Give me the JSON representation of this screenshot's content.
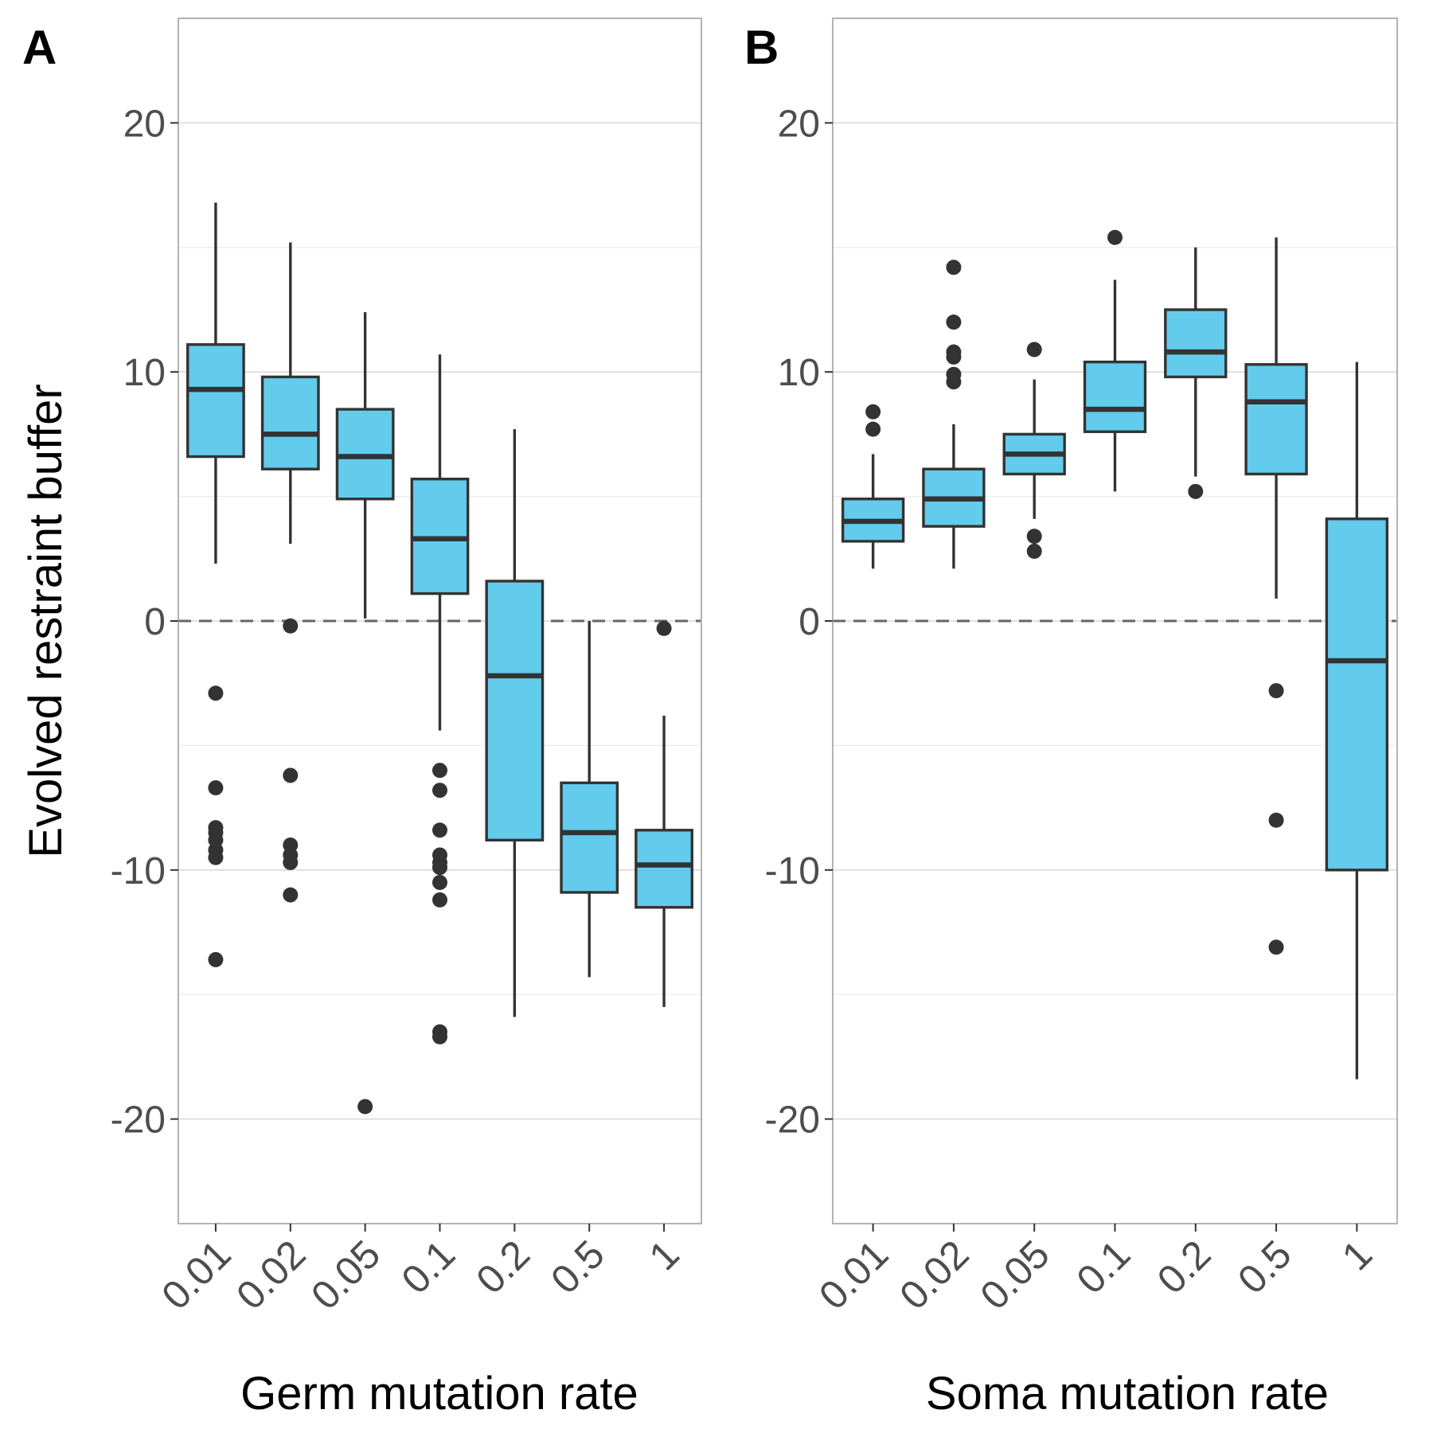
{
  "colors": {
    "box_fill": "#63CBEC",
    "box_stroke": "#333333",
    "grid": "#dedede",
    "panel_border": "#b3b3b3",
    "zero_line": "#666666",
    "tick_text": "#4d4d4d"
  },
  "ylabel": "Evolved restraint buffer",
  "chart_data": [
    {
      "type": "box",
      "panel_label": "A",
      "xlabel": "Germ mutation rate",
      "ylabel": "Evolved restraint buffer",
      "ylim": [
        -24.2,
        24.2
      ],
      "yticks": [
        -20,
        -10,
        0,
        10,
        20
      ],
      "yticks_labels": [
        "-20",
        "-10",
        "0",
        "10",
        "20"
      ],
      "reference_line": {
        "y": 0,
        "style": "dashed"
      },
      "categories": [
        "0.01",
        "0.02",
        "0.05",
        "0.1",
        "0.2",
        "0.5",
        "1"
      ],
      "boxes": [
        {
          "q1": 6.6,
          "median": 9.3,
          "q3": 11.1,
          "whisker_low": 2.3,
          "whisker_high": 16.8,
          "outliers": [
            -2.9,
            -6.7,
            -8.3,
            -8.5,
            -8.8,
            -9.2,
            -9.5,
            -13.6
          ]
        },
        {
          "q1": 6.1,
          "median": 7.5,
          "q3": 9.8,
          "whisker_low": 3.1,
          "whisker_high": 15.2,
          "outliers": [
            -0.2,
            -6.2,
            -9.0,
            -9.4,
            -9.7,
            -11.0
          ]
        },
        {
          "q1": 4.9,
          "median": 6.6,
          "q3": 8.5,
          "whisker_low": 0.1,
          "whisker_high": 12.4,
          "outliers": [
            -19.5
          ]
        },
        {
          "q1": 1.1,
          "median": 3.3,
          "q3": 5.7,
          "whisker_low": -4.4,
          "whisker_high": 10.7,
          "outliers": [
            -6.0,
            -6.8,
            -8.4,
            -9.4,
            -9.7,
            -9.9,
            -10.5,
            -11.2,
            -16.5,
            -16.7
          ]
        },
        {
          "q1": -8.8,
          "median": -2.2,
          "q3": 1.6,
          "whisker_low": -15.9,
          "whisker_high": 7.7,
          "outliers": []
        },
        {
          "q1": -10.9,
          "median": -8.5,
          "q3": -6.5,
          "whisker_low": -14.3,
          "whisker_high": 0.0,
          "outliers": []
        },
        {
          "q1": -11.5,
          "median": -9.8,
          "q3": -8.4,
          "whisker_low": -15.5,
          "whisker_high": -3.8,
          "outliers": [
            -0.3
          ]
        }
      ]
    },
    {
      "type": "box",
      "panel_label": "B",
      "xlabel": "Soma mutation rate",
      "ylabel": "",
      "ylim": [
        -24.2,
        24.2
      ],
      "yticks": [
        -20,
        -10,
        0,
        10,
        20
      ],
      "yticks_labels": [
        "-20",
        "-10",
        "0",
        "10",
        "20"
      ],
      "reference_line": {
        "y": 0,
        "style": "dashed"
      },
      "categories": [
        "0.01",
        "0.02",
        "0.05",
        "0.1",
        "0.2",
        "0.5",
        "1"
      ],
      "boxes": [
        {
          "q1": 3.2,
          "median": 4.0,
          "q3": 4.9,
          "whisker_low": 2.1,
          "whisker_high": 6.7,
          "outliers": [
            7.7,
            8.4
          ]
        },
        {
          "q1": 3.8,
          "median": 4.9,
          "q3": 6.1,
          "whisker_low": 2.1,
          "whisker_high": 7.9,
          "outliers": [
            9.6,
            9.9,
            10.6,
            10.8,
            12.0,
            14.2
          ]
        },
        {
          "q1": 5.9,
          "median": 6.7,
          "q3": 7.5,
          "whisker_low": 4.1,
          "whisker_high": 9.7,
          "outliers": [
            2.8,
            3.4,
            10.9
          ]
        },
        {
          "q1": 7.6,
          "median": 8.5,
          "q3": 10.4,
          "whisker_low": 5.2,
          "whisker_high": 13.7,
          "outliers": [
            15.4
          ]
        },
        {
          "q1": 9.8,
          "median": 10.8,
          "q3": 12.5,
          "whisker_low": 5.8,
          "whisker_high": 15.0,
          "outliers": [
            5.2
          ]
        },
        {
          "q1": 5.9,
          "median": 8.8,
          "q3": 10.3,
          "whisker_low": 0.9,
          "whisker_high": 15.4,
          "outliers": [
            -2.8,
            -8.0,
            -13.1
          ]
        },
        {
          "q1": -10.0,
          "median": -1.6,
          "q3": 4.1,
          "whisker_low": -18.4,
          "whisker_high": 10.4,
          "outliers": []
        }
      ]
    }
  ]
}
